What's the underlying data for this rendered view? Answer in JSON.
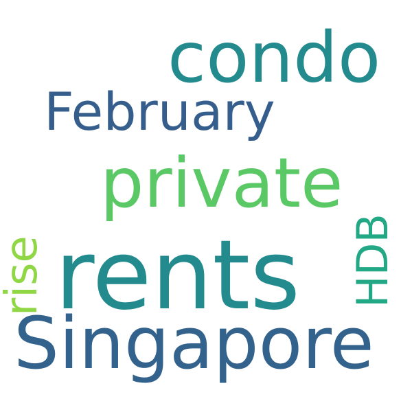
{
  "wordcloud": {
    "words": [
      {
        "id": "condo",
        "text": "condo",
        "color": "#238a8d"
      },
      {
        "id": "february",
        "text": "February",
        "color": "#355e8d"
      },
      {
        "id": "private",
        "text": "private",
        "color": "#5ac864"
      },
      {
        "id": "rents",
        "text": "rents",
        "color": "#238a8d"
      },
      {
        "id": "singapore",
        "text": "Singapore",
        "color": "#33638d"
      },
      {
        "id": "rise",
        "text": "rise",
        "color": "#8fd744"
      },
      {
        "id": "hdb",
        "text": "HDB",
        "color": "#22a884"
      }
    ]
  }
}
